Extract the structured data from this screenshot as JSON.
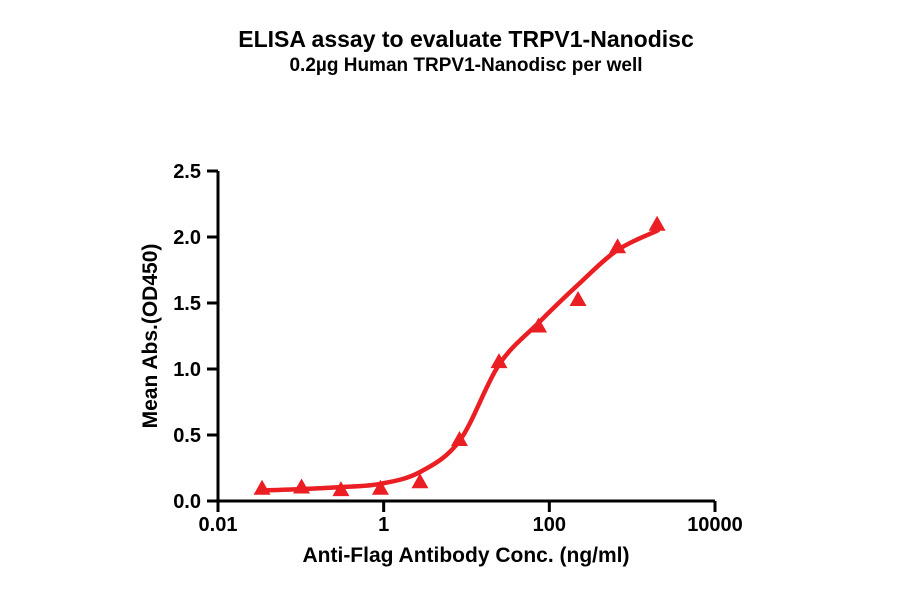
{
  "title": "ELISA assay to evaluate TRPV1-Nanodisc",
  "subtitle": "0.2µg Human TRPV1-Nanodisc per well",
  "chart_data": {
    "type": "scatter",
    "title": "ELISA assay to evaluate TRPV1-Nanodisc",
    "subtitle": "0.2µg Human TRPV1-Nanodisc per well",
    "xlabel": "Anti-Flag Antibody Conc. (ng/ml)",
    "ylabel": "Mean Abs.(OD450)",
    "xscale": "log",
    "xlim": [
      0.01,
      10000
    ],
    "ylim": [
      0,
      2.5
    ],
    "grid": false,
    "legend": "none",
    "marker_shape": "triangle-up",
    "xticks": {
      "values": [
        0.01,
        1,
        100,
        10000
      ],
      "labels": [
        "0.01",
        "1",
        "100",
        "10000"
      ]
    },
    "yticks": {
      "values": [
        0,
        0.5,
        1.0,
        1.5,
        2.0,
        2.5
      ],
      "labels": [
        "0.0",
        "0.5",
        "1.0",
        "1.5",
        "2.0",
        "2.5"
      ]
    },
    "x": [
      0.034,
      0.102,
      0.305,
      0.914,
      2.743,
      8.23,
      24.69,
      74.07,
      222.2,
      666.7,
      2000
    ],
    "y": [
      0.1,
      0.11,
      0.09,
      0.1,
      0.15,
      0.47,
      1.06,
      1.33,
      1.53,
      1.93,
      2.1
    ],
    "fit_curve": {
      "log10x": [
        -1.47,
        -1.0,
        -0.52,
        -0.04,
        0.44,
        0.92,
        1.39,
        1.87,
        2.35,
        2.82,
        3.31
      ],
      "y": [
        0.08,
        0.09,
        0.105,
        0.13,
        0.22,
        0.46,
        1.03,
        1.35,
        1.64,
        1.9,
        2.05
      ]
    },
    "colors": {
      "curve": "#EB1E23",
      "marker": "#EB1E23",
      "axis": "#000000",
      "text": "#000000",
      "background": "#FFFFFF"
    }
  }
}
